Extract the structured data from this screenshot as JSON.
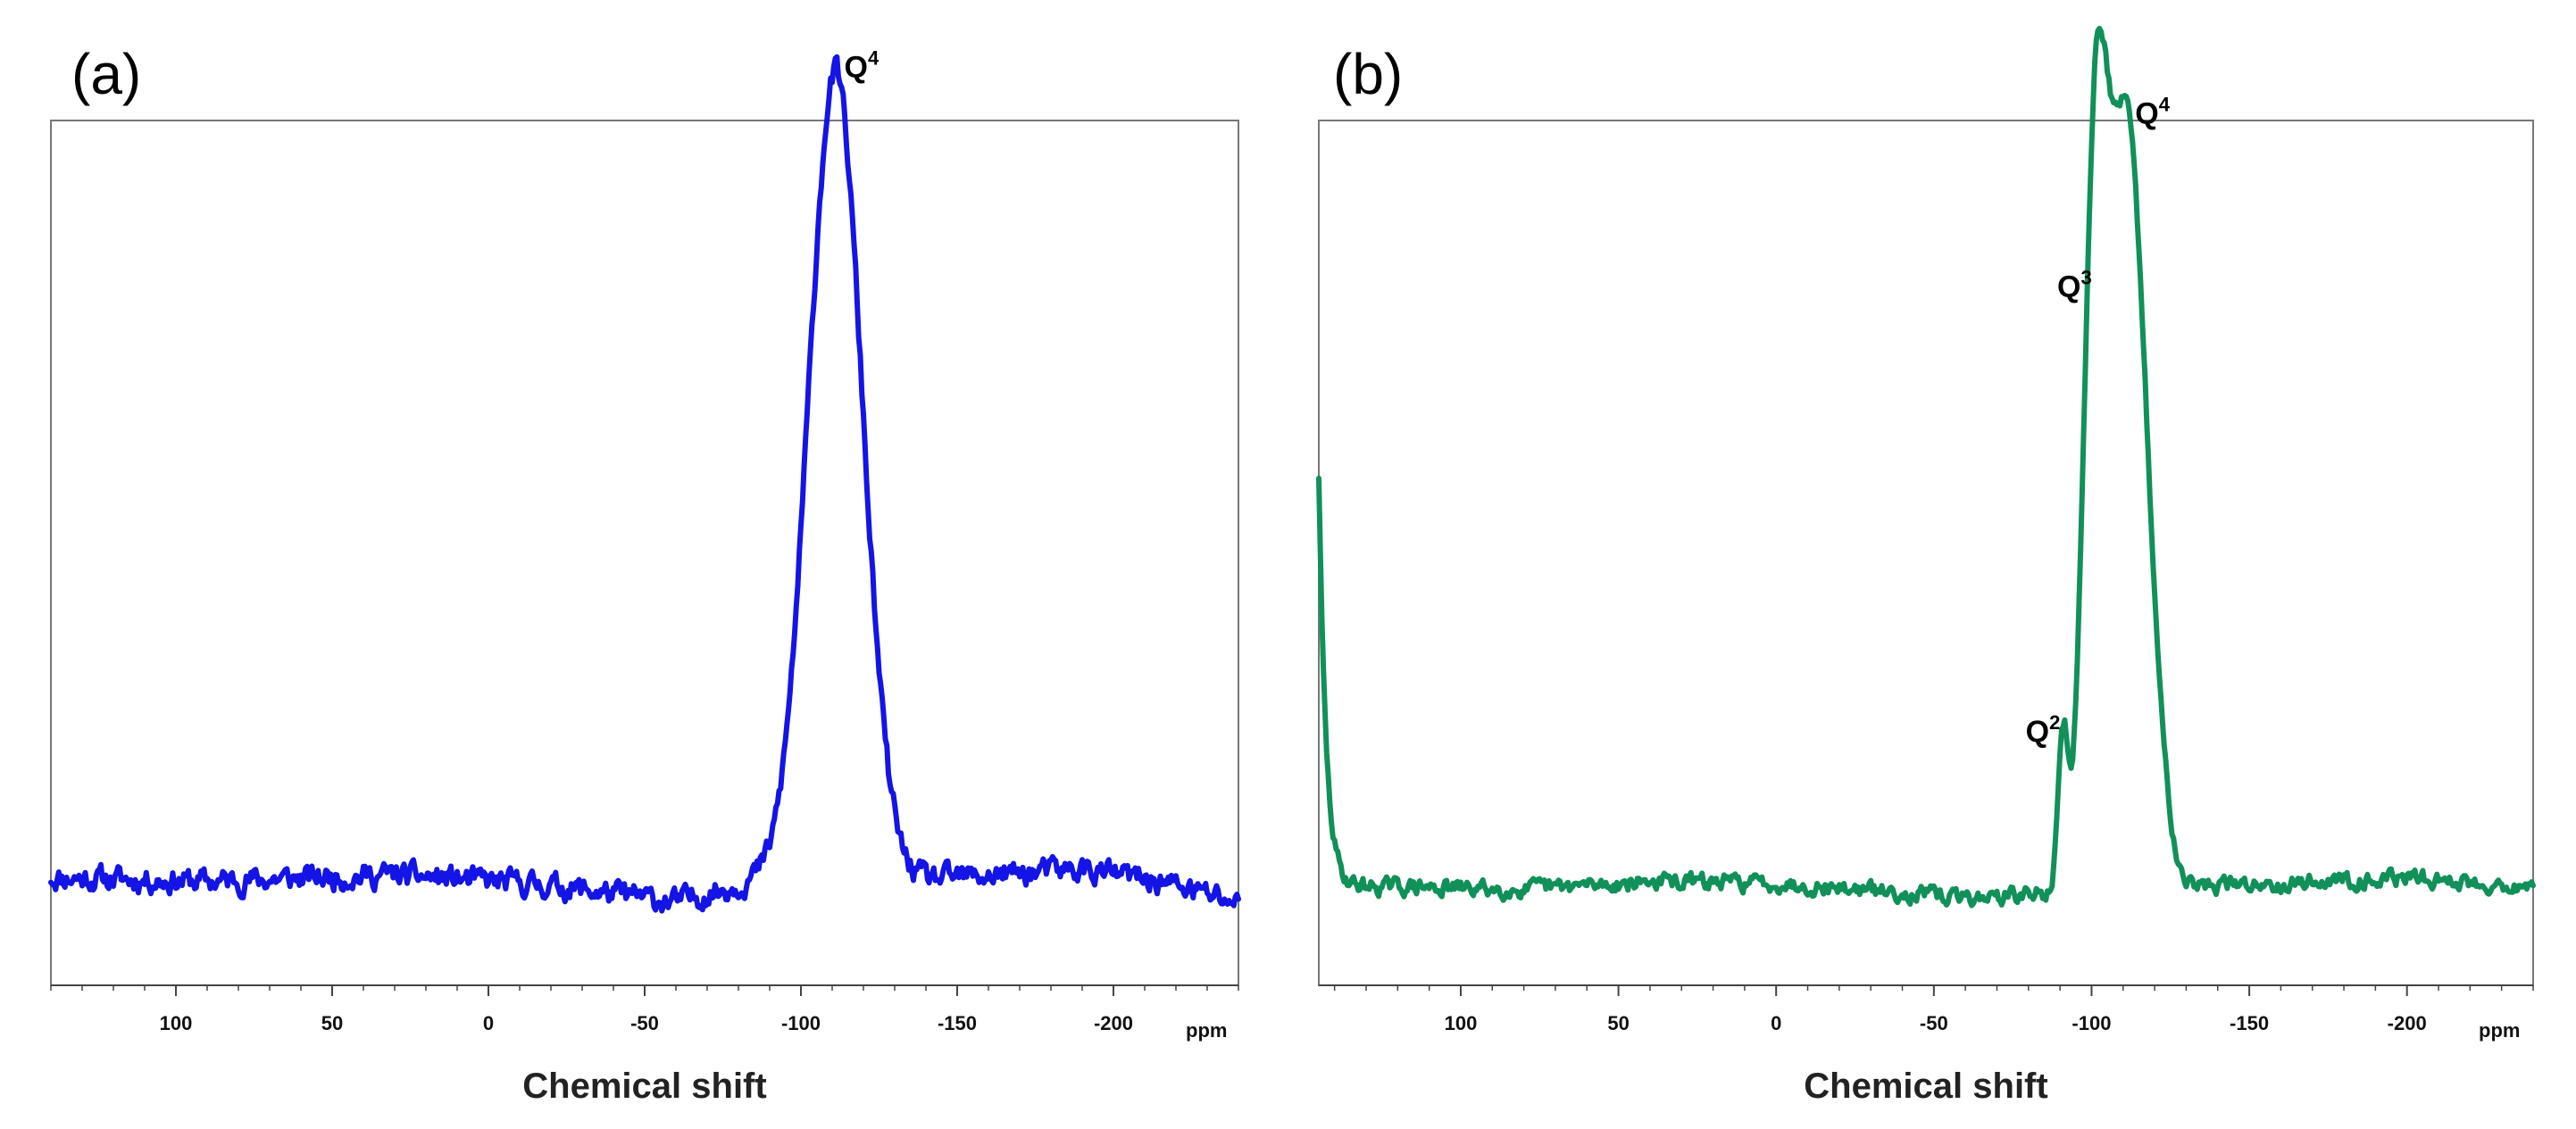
{
  "chart_data": [
    {
      "type": "line",
      "panel_label": "(a)",
      "title": "",
      "xlabel": "Chemical shift",
      "x_unit": "ppm",
      "ylabel": "",
      "xlim": [
        140,
        -240
      ],
      "x_reversed": true,
      "xticks": [
        100,
        50,
        0,
        -50,
        -100,
        -150,
        -200
      ],
      "xtick_labels": [
        "100",
        "50",
        "0",
        "-50",
        "-100",
        "-150",
        "-200"
      ],
      "grid": false,
      "legend": "none",
      "series": [
        {
          "color": "#1414e6",
          "baseline": 0.06,
          "noise": 0.012,
          "baseline_points": [
            [
              140,
              0.075
            ],
            [
              90,
              0.07
            ],
            [
              30,
              0.078
            ],
            [
              -20,
              0.065
            ],
            [
              -60,
              0.045
            ],
            [
              -85,
              0.07
            ],
            [
              -140,
              0.072
            ],
            [
              -190,
              0.085
            ],
            [
              -215,
              0.07
            ],
            [
              -240,
              0.045
            ]
          ],
          "peaks": [
            {
              "center": -111,
              "height": 0.985,
              "width": 8.5
            }
          ]
        }
      ],
      "annotations": [
        {
          "text": "Q",
          "sup": "4",
          "x": -111
        }
      ]
    },
    {
      "type": "line",
      "panel_label": "(b)",
      "title": "",
      "xlabel": "Chemical shift",
      "x_unit": "ppm",
      "ylabel": "",
      "xlim": [
        145,
        -240
      ],
      "x_reversed": true,
      "xticks": [
        100,
        50,
        0,
        -50,
        -100,
        -150,
        -200
      ],
      "xtick_labels": [
        "100",
        "50",
        "0",
        "-50",
        "-100",
        "-150",
        "-200"
      ],
      "grid": false,
      "legend": "none",
      "series": [
        {
          "color": "#11905a",
          "baseline": 0.06,
          "noise": 0.008,
          "edge_spike": {
            "start": 145,
            "height": 0.5,
            "decay": 2.2
          },
          "baseline_points": [
            [
              140,
              0.065
            ],
            [
              80,
              0.06
            ],
            [
              40,
              0.07
            ],
            [
              0,
              0.068
            ],
            [
              -60,
              0.05
            ],
            [
              -140,
              0.065
            ],
            [
              -200,
              0.075
            ],
            [
              -240,
              0.062
            ]
          ],
          "peaks": [
            {
              "center": -91,
              "height": 0.18,
              "width": 1.6
            },
            {
              "center": -101,
              "height": 0.72,
              "width": 3.6
            },
            {
              "center": -111,
              "height": 0.94,
              "width": 6.5
            }
          ]
        }
      ],
      "annotations": [
        {
          "text": "Q",
          "sup": "2",
          "x": -91
        },
        {
          "text": "Q",
          "sup": "3",
          "x": -101
        },
        {
          "text": "Q",
          "sup": "4",
          "x": -111
        }
      ]
    }
  ]
}
